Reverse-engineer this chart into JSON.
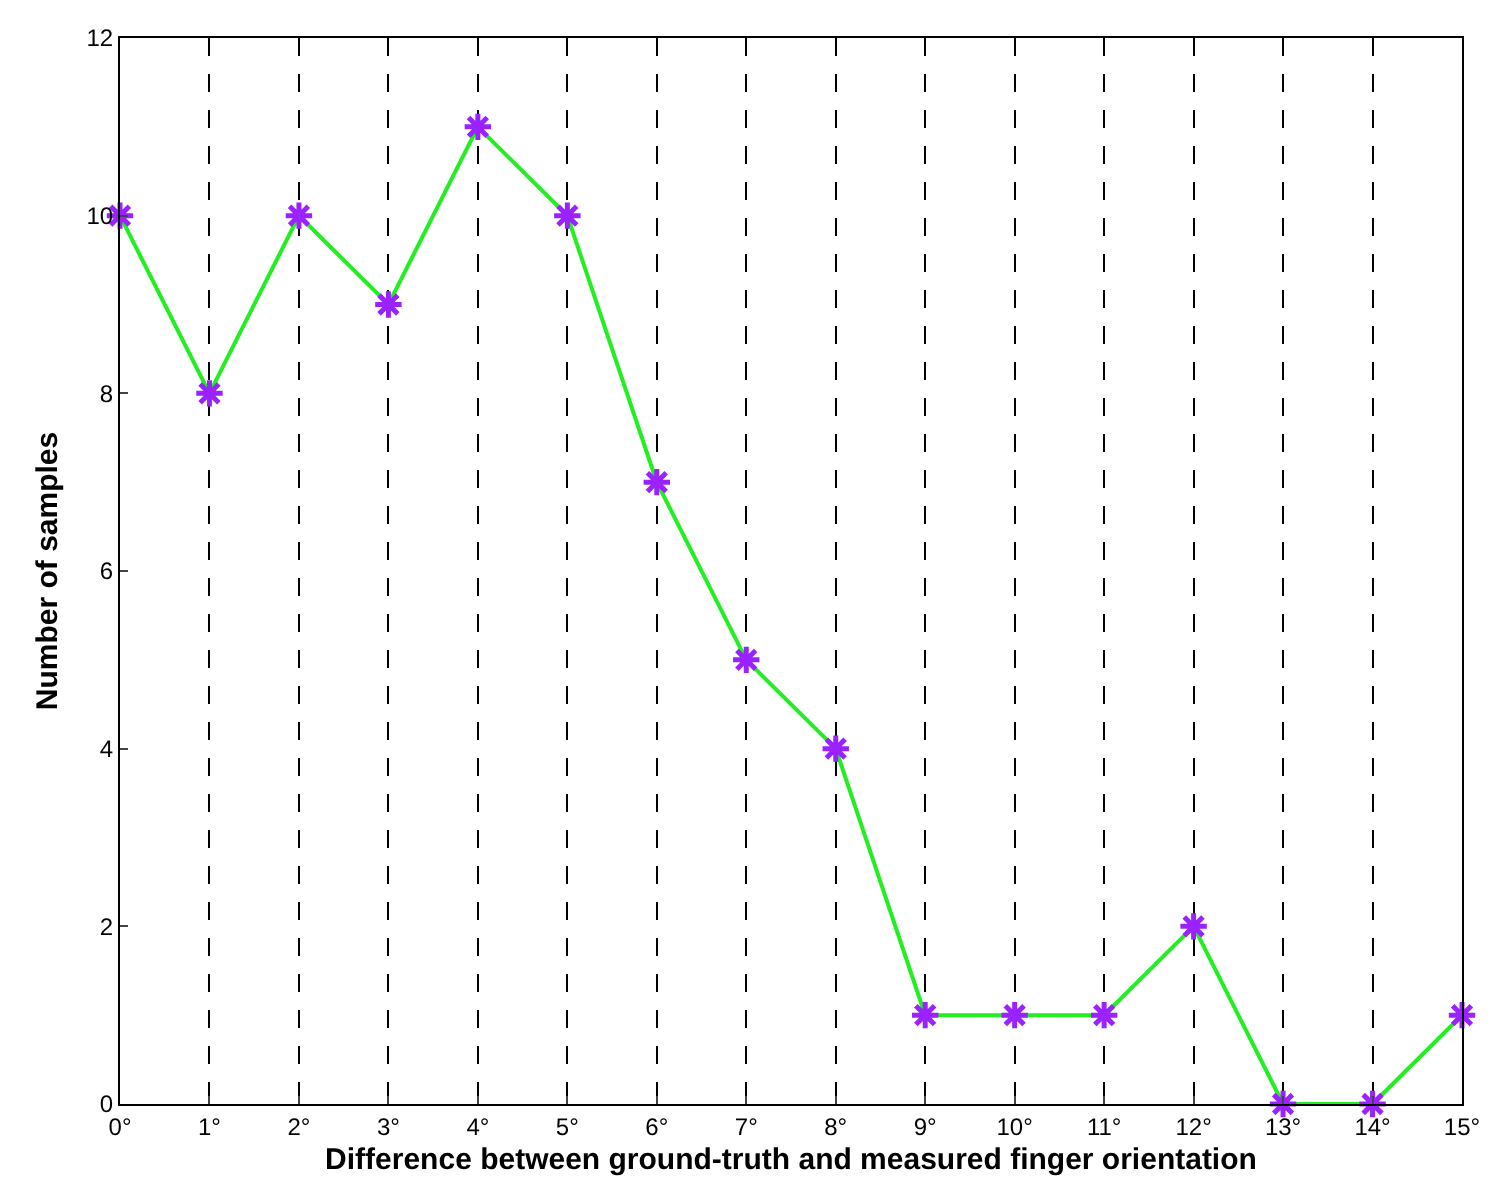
{
  "chart_data": {
    "type": "line",
    "xlabel": "Difference between ground-truth and measured finger orientation",
    "ylabel": "Number of samples",
    "categories": [
      "0°",
      "1°",
      "2°",
      "3°",
      "4°",
      "5°",
      "6°",
      "7°",
      "8°",
      "9°",
      "10°",
      "11°",
      "12°",
      "13°",
      "14°",
      "15°"
    ],
    "series": [
      {
        "color": "#22ee22",
        "colors": [
          "#9922ff",
          "#9922ff",
          "#9922ff",
          "#9922ff",
          "#9922ff",
          "#9922ff",
          "#9922ff",
          "#9922ff",
          "#9922ff",
          "#9922ff",
          "#9922ff",
          "#9922ff",
          "#9922ff",
          "#9922ff",
          "#9922ff",
          "#9922ff"
        ],
        "values": [
          10,
          8,
          10,
          9,
          11,
          10,
          7,
          5,
          4,
          1,
          1,
          1,
          2,
          0,
          0,
          1
        ]
      }
    ],
    "ylim": [
      0,
      12
    ],
    "yticks": [
      0,
      2,
      4,
      6,
      8,
      10,
      12
    ],
    "grid": "x",
    "marker": "cross",
    "line_style": "solid"
  }
}
